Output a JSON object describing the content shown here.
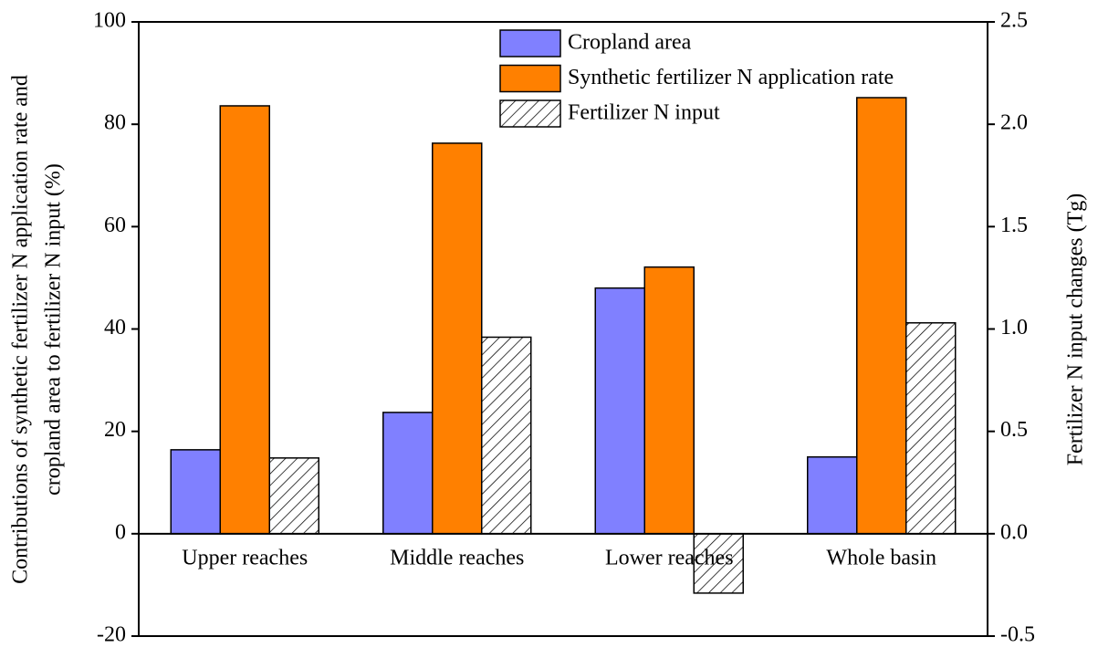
{
  "chart_data": {
    "type": "bar",
    "categories": [
      "Upper reaches",
      "Middle reaches",
      "Lower reaches",
      "Whole basin"
    ],
    "series": [
      {
        "name": "Cropland area",
        "color": "#8080ff",
        "values": [
          16.4,
          23.7,
          48.0,
          15.0
        ]
      },
      {
        "name": "Synthetic fertilizer N application rate",
        "color": "#ff8000",
        "values": [
          83.6,
          76.3,
          52.1,
          85.2
        ]
      },
      {
        "name": "Fertilizer N input",
        "color": "#ffffff",
        "hatch": true,
        "axis": "y2",
        "values": [
          0.37,
          0.96,
          -0.29,
          1.03
        ]
      }
    ],
    "ylabel": [
      "Contributions of synthetic fertilizer N application rate and",
      "cropland area to fertilizer N input (%)"
    ],
    "y2label": "Fertilizer N input changes (Tg)",
    "ylim": [
      -20,
      100
    ],
    "yticks": [
      -20,
      0,
      20,
      40,
      60,
      80,
      100
    ],
    "y2lim": [
      -0.5,
      2.5
    ],
    "y2ticks": [
      -0.5,
      {
        "value": 0,
        "label": "0.0"
      },
      0.5,
      {
        "value": 1,
        "label": "1.0"
      },
      1.5,
      {
        "value": 2,
        "label": "2.0"
      },
      2.5
    ],
    "legend": "upper center"
  }
}
